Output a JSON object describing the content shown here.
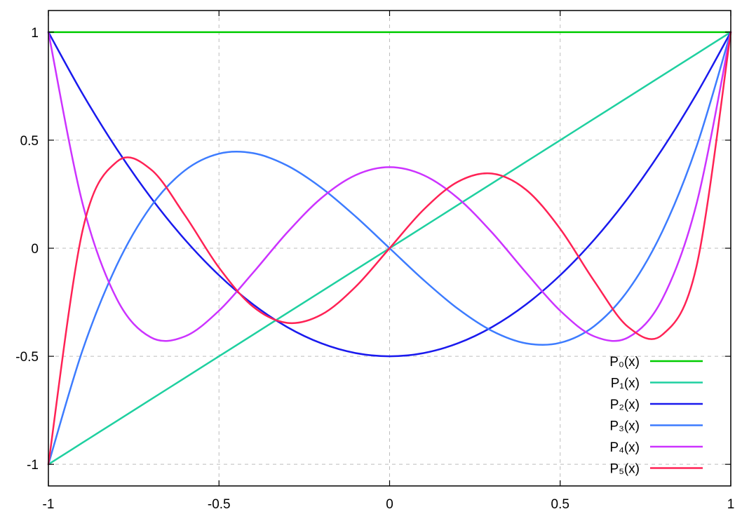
{
  "chart_data": {
    "type": "line",
    "title": "",
    "xlabel": "",
    "ylabel": "",
    "xlim": [
      -1,
      1
    ],
    "ylim": [
      -1.1,
      1.1
    ],
    "grid": true,
    "legend_position": "bottom-right",
    "xticks": [
      {
        "value": -1,
        "label": "-1"
      },
      {
        "value": -0.5,
        "label": "-0.5"
      },
      {
        "value": 0,
        "label": "0"
      },
      {
        "value": 0.5,
        "label": "0.5"
      },
      {
        "value": 1,
        "label": "1"
      }
    ],
    "yticks": [
      {
        "value": -1,
        "label": "-1"
      },
      {
        "value": -0.5,
        "label": "-0.5"
      },
      {
        "value": 0,
        "label": "0"
      },
      {
        "value": 0.5,
        "label": "0.5"
      },
      {
        "value": 1,
        "label": "1"
      }
    ],
    "x": [
      -1,
      -0.9,
      -0.8,
      -0.7,
      -0.6,
      -0.5,
      -0.4,
      -0.3,
      -0.2,
      -0.1,
      0,
      0.1,
      0.2,
      0.3,
      0.4,
      0.5,
      0.6,
      0.7,
      0.8,
      0.9,
      1
    ],
    "series": [
      {
        "name": "P₀(x)",
        "color": "#00cc00",
        "values": [
          1,
          1,
          1,
          1,
          1,
          1,
          1,
          1,
          1,
          1,
          1,
          1,
          1,
          1,
          1,
          1,
          1,
          1,
          1,
          1,
          1
        ]
      },
      {
        "name": "P₁(x)",
        "color": "#1fd0a0",
        "values": [
          -1,
          -0.9,
          -0.8,
          -0.7,
          -0.6,
          -0.5,
          -0.4,
          -0.3,
          -0.2,
          -0.1,
          0,
          0.1,
          0.2,
          0.3,
          0.4,
          0.5,
          0.6,
          0.7,
          0.8,
          0.9,
          1
        ]
      },
      {
        "name": "P₂(x)",
        "color": "#1a1aee",
        "values": [
          1,
          0.715,
          0.46,
          0.235,
          0.04,
          -0.125,
          -0.26,
          -0.365,
          -0.44,
          -0.485,
          -0.5,
          -0.485,
          -0.44,
          -0.365,
          -0.26,
          -0.125,
          0.04,
          0.235,
          0.46,
          0.715,
          1
        ]
      },
      {
        "name": "P₃(x)",
        "color": "#3d7cff",
        "values": [
          -1,
          -0.4725,
          -0.08,
          0.1925,
          0.36,
          0.4375,
          0.44,
          0.3825,
          0.28,
          0.1475,
          0,
          -0.1475,
          -0.28,
          -0.3825,
          -0.44,
          -0.4375,
          -0.36,
          -0.1925,
          0.08,
          0.4725,
          1
        ]
      },
      {
        "name": "P₄(x)",
        "color": "#cc33ff",
        "values": [
          1,
          0.2079,
          -0.233,
          -0.4121,
          -0.408,
          -0.2891,
          -0.113,
          0.0729,
          0.232,
          0.3379,
          0.375,
          0.3379,
          0.232,
          0.0729,
          -0.113,
          -0.2891,
          -0.408,
          -0.4121,
          -0.233,
          0.2079,
          1
        ]
      },
      {
        "name": "P₅(x)",
        "color": "#ff2255",
        "values": [
          -1,
          0.0806,
          0.3995,
          0.3652,
          0.1526,
          -0.0898,
          -0.2706,
          -0.3454,
          -0.3075,
          -0.1788,
          0,
          0.1788,
          0.3075,
          0.3454,
          0.2706,
          0.0898,
          -0.1526,
          -0.3652,
          -0.3995,
          -0.0806,
          1
        ]
      }
    ]
  }
}
